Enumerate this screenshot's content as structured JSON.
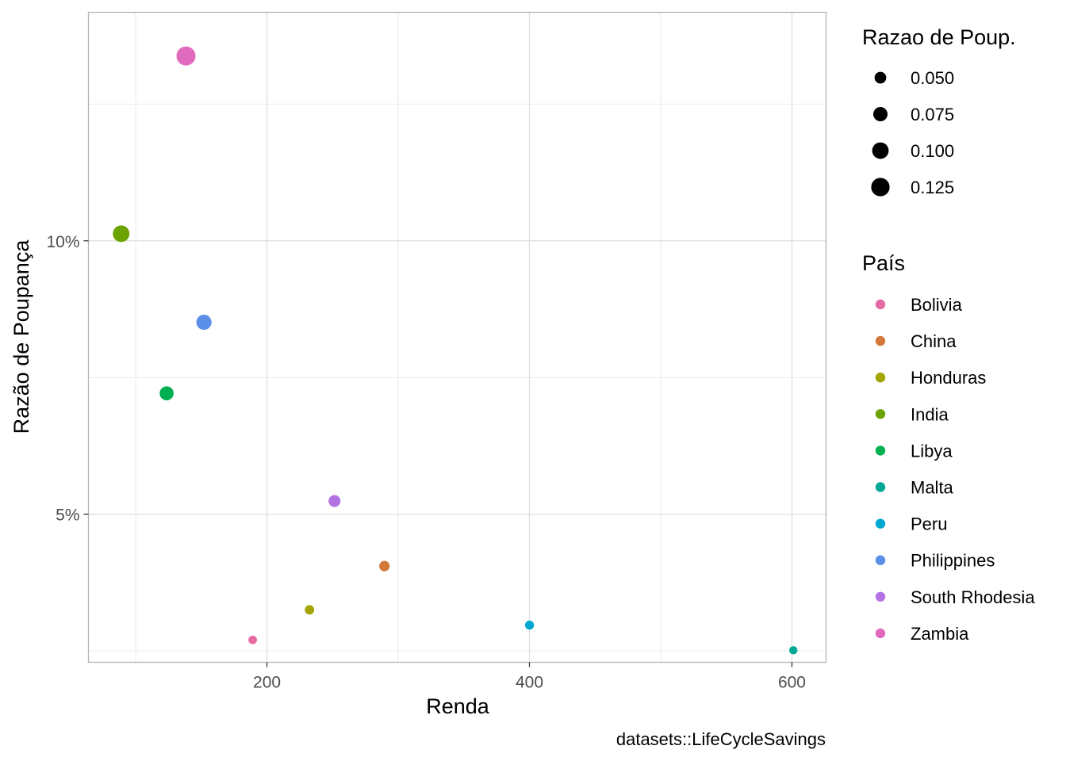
{
  "chart_data": {
    "type": "scatter",
    "xlabel": "Renda",
    "ylabel": "Razão de Poupança",
    "caption": "datasets::LifeCycleSavings",
    "xlim": [
      64,
      626
    ],
    "ylim": [
      0.0229,
      0.1418
    ],
    "x_ticks": [
      {
        "value": 200,
        "label": "200"
      },
      {
        "value": 400,
        "label": "400"
      },
      {
        "value": 600,
        "label": "600"
      }
    ],
    "x_minor_ticks": [
      100,
      300,
      500
    ],
    "y_ticks": [
      {
        "value": 0.05,
        "label": "5%"
      },
      {
        "value": 0.1,
        "label": "10%"
      }
    ],
    "y_minor_ticks": [
      0.025,
      0.075,
      0.125
    ],
    "size_legend": {
      "title": "Razao de Poup.",
      "entries": [
        {
          "value": 0.05,
          "label": "0.050"
        },
        {
          "value": 0.075,
          "label": "0.075"
        },
        {
          "value": 0.1,
          "label": "0.100"
        },
        {
          "value": 0.125,
          "label": "0.125"
        }
      ]
    },
    "color_legend": {
      "title": "País"
    },
    "points": [
      {
        "country": "Bolivia",
        "x": 189.13,
        "y": 0.027,
        "color": "#E76BA3"
      },
      {
        "country": "China",
        "x": 289.52,
        "y": 0.0405,
        "color": "#D2793A"
      },
      {
        "country": "Honduras",
        "x": 232.44,
        "y": 0.0325,
        "color": "#A3A500"
      },
      {
        "country": "India",
        "x": 88.94,
        "y": 0.1013,
        "color": "#6BA300"
      },
      {
        "country": "Libya",
        "x": 123.58,
        "y": 0.0721,
        "color": "#00B050"
      },
      {
        "country": "Malta",
        "x": 601.05,
        "y": 0.0251,
        "color": "#00A895"
      },
      {
        "country": "Peru",
        "x": 400.06,
        "y": 0.0297,
        "color": "#00A8D0"
      },
      {
        "country": "Philippines",
        "x": 152.01,
        "y": 0.0851,
        "color": "#5B8FE8"
      },
      {
        "country": "South Rhodesia",
        "x": 251.47,
        "y": 0.0524,
        "color": "#B473E3"
      },
      {
        "country": "Zambia",
        "x": 138.33,
        "y": 0.1338,
        "color": "#E16BBE"
      }
    ]
  }
}
